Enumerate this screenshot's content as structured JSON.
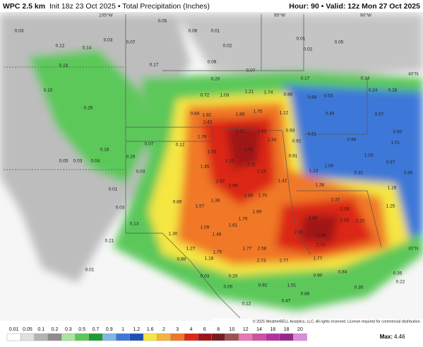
{
  "header": {
    "model": "WPC 2.5 km",
    "init": "Init 18z 23 Oct 2025 • Total Precipitation (Inches)",
    "valid": "Hour: 90 • Valid: 12z Mon 27 Oct 2025"
  },
  "grid_labels": [
    "105°W",
    "95°W",
    "90°W",
    "40°N",
    "30°N"
  ],
  "map_labels": [
    "0.03",
    "0.12",
    "0.14",
    "0.03",
    "0.07",
    "0.05",
    "0.06",
    "0.01",
    "0.02",
    "0.01",
    "0.02",
    "0.05",
    "0.15",
    "0.10",
    "0.26",
    "0.17",
    "0.09",
    "0.07",
    "0.17",
    "0.14",
    "0.24",
    "0.28",
    "0.20",
    "0.72",
    "1.03",
    "1.21",
    "1.74",
    "0.86",
    "0.68",
    "0.53",
    "0.84",
    "1.82",
    "1.88",
    "1.75",
    "1.12",
    "0.49",
    "0.57",
    "2.42",
    "3.22",
    "2.83",
    "0.93",
    "0.51",
    "1.79",
    "2.34",
    "0.92",
    "1.54",
    "3.42",
    "0.91",
    "3.15",
    "2.11",
    "1.45",
    "2.24",
    "1.13",
    "1.00",
    "2.97",
    "2.98",
    "1.42",
    "1.38",
    "1.16",
    "0.89",
    "1.57",
    "1.38",
    "2.89",
    "1.70",
    "2.37",
    "1.69",
    "3.68",
    "2.18",
    "1.09",
    "1.61",
    "1.79",
    "2.95",
    "3.46",
    "2.55",
    "2.20",
    "1.30",
    "1.49",
    "2.70",
    "2.58",
    "1.27",
    "1.75",
    "1.77",
    "0.88",
    "1.18",
    "2.73",
    "2.77",
    "1.77",
    "0.90",
    "0.84",
    "1.51",
    "0.92",
    "0.88",
    "0.47",
    "0.30",
    "0.22",
    "0.35",
    "0.01",
    "0.03",
    "0.20",
    "0.05",
    "0.12",
    "1.25",
    "0.95",
    "0.97",
    "1.01",
    "0.90",
    "0.99",
    "1.03",
    "0.31",
    "0.21",
    "0.13",
    "0.01",
    "0.03",
    "0.05",
    "0.03",
    "0.04",
    "0.03",
    "0.12",
    "0.07",
    "0.18",
    "0.16"
  ],
  "copyright": "© 2025 WeatherBELL Analytics, LLC. All rights reserved. License required for commercial distribution.",
  "legend": {
    "ticks": [
      0.01,
      0.05,
      0.1,
      0.2,
      0.3,
      0.5,
      0.7,
      0.9,
      1,
      1.2,
      1.6,
      2,
      3,
      4,
      6,
      8,
      10,
      12,
      14,
      16,
      18,
      20
    ],
    "colors": [
      "#ffffff",
      "#e0e0e0",
      "#b4b4b4",
      "#8c8c8c",
      "#a8e6a0",
      "#5cc85a",
      "#1e9b32",
      "#7db8e8",
      "#3c78d8",
      "#1f4fb4",
      "#f5e642",
      "#f5b53c",
      "#f07828",
      "#dc2814",
      "#a01414",
      "#781e1e",
      "#a05050",
      "#e678b4",
      "#d250a0",
      "#b432a0",
      "#96288c",
      "#dc8cdc"
    ]
  },
  "max": {
    "label": "Max:",
    "value": "4.46"
  }
}
